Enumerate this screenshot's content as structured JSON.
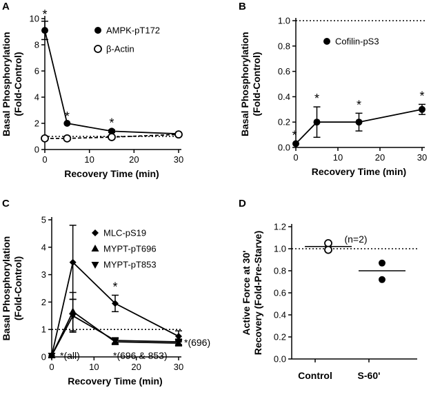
{
  "chart_data": [
    {
      "panel": "A",
      "type": "line",
      "xlabel": "Recovery Time (min)",
      "ylabel_lines": [
        "Basal Phosphorylation",
        "(Fold-Control)"
      ],
      "xlim": [
        0,
        30
      ],
      "ylim": [
        0,
        10
      ],
      "xticks": [
        0,
        10,
        20,
        30
      ],
      "yticks": [
        0,
        2,
        4,
        6,
        8,
        10
      ],
      "x": [
        0,
        5,
        15,
        30
      ],
      "series": [
        {
          "name": "AMPK-pT172",
          "marker": "filled-circle",
          "line": "solid",
          "values": [
            9.1,
            2.0,
            1.4,
            1.2
          ],
          "error": [
            0.7,
            0.0,
            0.1,
            0.1
          ],
          "significant": [
            true,
            true,
            true,
            false
          ]
        },
        {
          "name": "β-Actin",
          "marker": "open-circle",
          "line": "dashed",
          "values": [
            0.85,
            0.85,
            0.95,
            1.15
          ],
          "error": [
            0,
            0,
            0,
            0
          ],
          "significant": [
            false,
            false,
            false,
            false
          ]
        }
      ],
      "reference_line": 1.0,
      "annotation_text": "*",
      "legend_position": "top-right"
    },
    {
      "panel": "B",
      "type": "line",
      "xlabel": "Recovery Time (min)",
      "ylabel_lines": [
        "Basal Phosphorylation",
        "(Fold-Control)"
      ],
      "xlim": [
        0,
        30
      ],
      "ylim": [
        0,
        1.0
      ],
      "xticks": [
        0,
        10,
        20,
        30
      ],
      "yticks": [
        "0.0",
        "0.2",
        "0.4",
        "0.6",
        "0.8",
        "1.0"
      ],
      "x": [
        0,
        5,
        15,
        30
      ],
      "series": [
        {
          "name": "Cofilin-pS3",
          "marker": "filled-circle",
          "line": "solid",
          "values": [
            0.03,
            0.2,
            0.2,
            0.3
          ],
          "error": [
            0.0,
            0.12,
            0.07,
            0.04
          ],
          "significant": [
            true,
            true,
            true,
            true
          ]
        }
      ],
      "reference_line": 1.0,
      "annotation_text": "*",
      "legend_position": "top-right"
    },
    {
      "panel": "C",
      "type": "line",
      "xlabel": "Recovery Time (min)",
      "ylabel_lines": [
        "Basal Phosphorylation",
        "(Fold-Control)"
      ],
      "xlim": [
        0,
        30
      ],
      "ylim": [
        0,
        5
      ],
      "xticks": [
        0,
        10,
        20,
        30
      ],
      "yticks": [
        0,
        1,
        2,
        3,
        4,
        5
      ],
      "x": [
        0,
        5,
        15,
        30
      ],
      "series": [
        {
          "name": "MLC-pS19",
          "marker": "diamond",
          "line": "solid",
          "values": [
            0.05,
            3.45,
            1.95,
            0.75
          ],
          "error": [
            0.0,
            1.35,
            0.3,
            0.2
          ]
        },
        {
          "name": "MYPT-pT696",
          "marker": "triangle-up",
          "line": "solid",
          "values": [
            0.05,
            1.65,
            0.55,
            0.5
          ],
          "error": [
            0.0,
            0.7,
            0.1,
            0.1
          ]
        },
        {
          "name": "MYPT-pT853",
          "marker": "triangle-down",
          "line": "solid",
          "values": [
            0.05,
            1.5,
            0.6,
            0.55
          ],
          "error": [
            0.0,
            0.6,
            0.1,
            0.1
          ]
        }
      ],
      "reference_line": 1.0,
      "annotations": [
        "*",
        "*(all)",
        "*(696 & 853)",
        "*(696)"
      ],
      "legend_position": "top-right"
    },
    {
      "panel": "D",
      "type": "scatter",
      "ylabel_lines": [
        "Active  Force at 30'",
        "Recovery (Fold-Pre-Starve)"
      ],
      "ylim": [
        0,
        1.2
      ],
      "yticks": [
        "0.0",
        "0.2",
        "0.4",
        "0.6",
        "0.8",
        "1.0",
        "1.2"
      ],
      "categories": [
        "Control",
        "S-60'"
      ],
      "points": [
        {
          "category": "Control",
          "values": [
            1.05,
            0.99
          ],
          "marker": "open-circle",
          "mean": 1.02
        },
        {
          "category": "S-60'",
          "values": [
            0.87,
            0.72
          ],
          "marker": "filled-circle",
          "mean": 0.8
        }
      ],
      "reference_line": 1.0,
      "note": "(n=2)"
    }
  ]
}
